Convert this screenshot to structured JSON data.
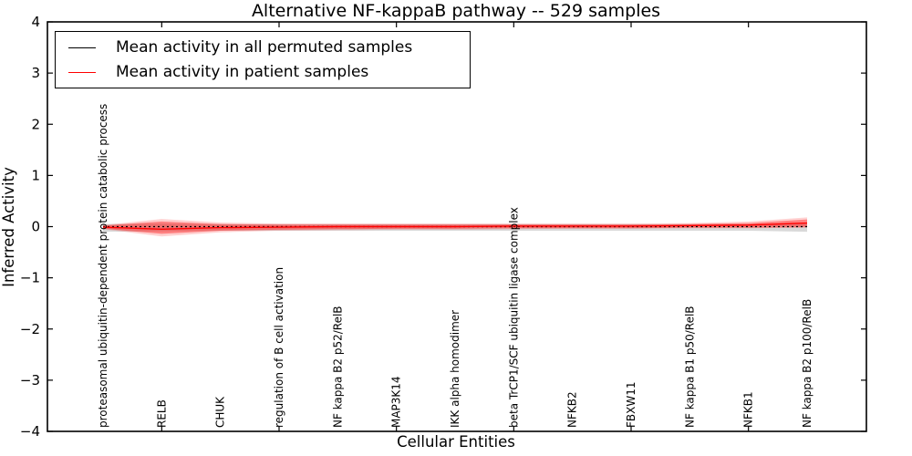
{
  "title": "Alternative NF-kappaB pathway -- 529 samples",
  "x_axis": {
    "label": "Cellular Entities"
  },
  "y_axis": {
    "label": "Inferred Activity",
    "tick_values": [
      4,
      3,
      2,
      1,
      0,
      -1,
      -2,
      -3,
      -4
    ],
    "tick_labels": [
      "4",
      "3",
      "2",
      "1",
      "0",
      "−1",
      "−2",
      "−3",
      "−4"
    ]
  },
  "legend": {
    "items": [
      {
        "label": "Mean activity in all permuted samples",
        "color": "#000000"
      },
      {
        "label": "Mean activity in patient samples",
        "color": "#ff0000"
      }
    ]
  },
  "colors": {
    "frame": "#000000",
    "permuted_line": "#000000",
    "patient_line": "#ff0000",
    "permuted_band": "rgba(130,130,130,0.30)",
    "patient_band_outer": "rgba(255,0,0,0.18)",
    "patient_band_inner": "rgba(255,0,0,0.38)",
    "background": "#ffffff"
  },
  "chart_data": {
    "type": "line",
    "title": "Alternative NF-kappaB pathway -- 529 samples",
    "xlabel": "Cellular Entities",
    "ylabel": "Inferred Activity",
    "ylim": [
      -4,
      4
    ],
    "yticks": [
      4,
      3,
      2,
      1,
      0,
      -1,
      -2,
      -3,
      -4
    ],
    "grid": false,
    "legend_position": "upper left",
    "categories": [
      "proteasomal ubiquitin-dependent protein catabolic process",
      "RELB",
      "CHUK",
      "regulation of B cell activation",
      "NF kappa B2 p52/RelB",
      "MAP3K14",
      "IKK alpha homodimer",
      "beta TrCP1/SCF ubiquitin ligase complex",
      "NFKB2",
      "FBXW11",
      "NF kappa B1 p50/RelB",
      "NFKB1",
      "NF kappa B2 p100/RelB"
    ],
    "series": [
      {
        "name": "Mean activity in all permuted samples",
        "color": "#000000",
        "line_style": "dotted",
        "values": [
          0,
          0,
          0,
          0,
          0,
          0,
          0,
          0,
          0,
          0,
          0,
          0,
          0
        ],
        "band": {
          "upper": [
            0.05,
            0.06,
            0.05,
            0.05,
            0.05,
            0.05,
            0.05,
            0.05,
            0.05,
            0.05,
            0.05,
            0.05,
            0.06
          ],
          "lower": [
            -0.1,
            -0.09,
            -0.08,
            -0.08,
            -0.08,
            -0.08,
            -0.08,
            -0.08,
            -0.08,
            -0.08,
            -0.08,
            -0.08,
            -0.1
          ]
        }
      },
      {
        "name": "Mean activity in patient samples",
        "color": "#ff0000",
        "line_style": "solid",
        "values": [
          -0.01,
          -0.05,
          -0.02,
          -0.01,
          0.0,
          0.0,
          0.0,
          0.01,
          0.01,
          0.01,
          0.02,
          0.03,
          0.07
        ],
        "band_inner": {
          "upper": [
            0.02,
            0.1,
            0.05,
            0.04,
            0.04,
            0.04,
            0.04,
            0.04,
            0.04,
            0.04,
            0.05,
            0.07,
            0.14
          ],
          "lower": [
            -0.04,
            -0.14,
            -0.08,
            -0.06,
            -0.05,
            -0.04,
            -0.04,
            -0.03,
            -0.03,
            -0.03,
            -0.02,
            -0.02,
            -0.01
          ]
        },
        "band_outer": {
          "upper": [
            0.03,
            0.15,
            0.08,
            0.06,
            0.06,
            0.06,
            0.06,
            0.06,
            0.06,
            0.06,
            0.07,
            0.1,
            0.18
          ],
          "lower": [
            -0.05,
            -0.19,
            -0.11,
            -0.08,
            -0.07,
            -0.06,
            -0.06,
            -0.05,
            -0.04,
            -0.04,
            -0.03,
            -0.03,
            -0.02
          ]
        }
      }
    ]
  }
}
